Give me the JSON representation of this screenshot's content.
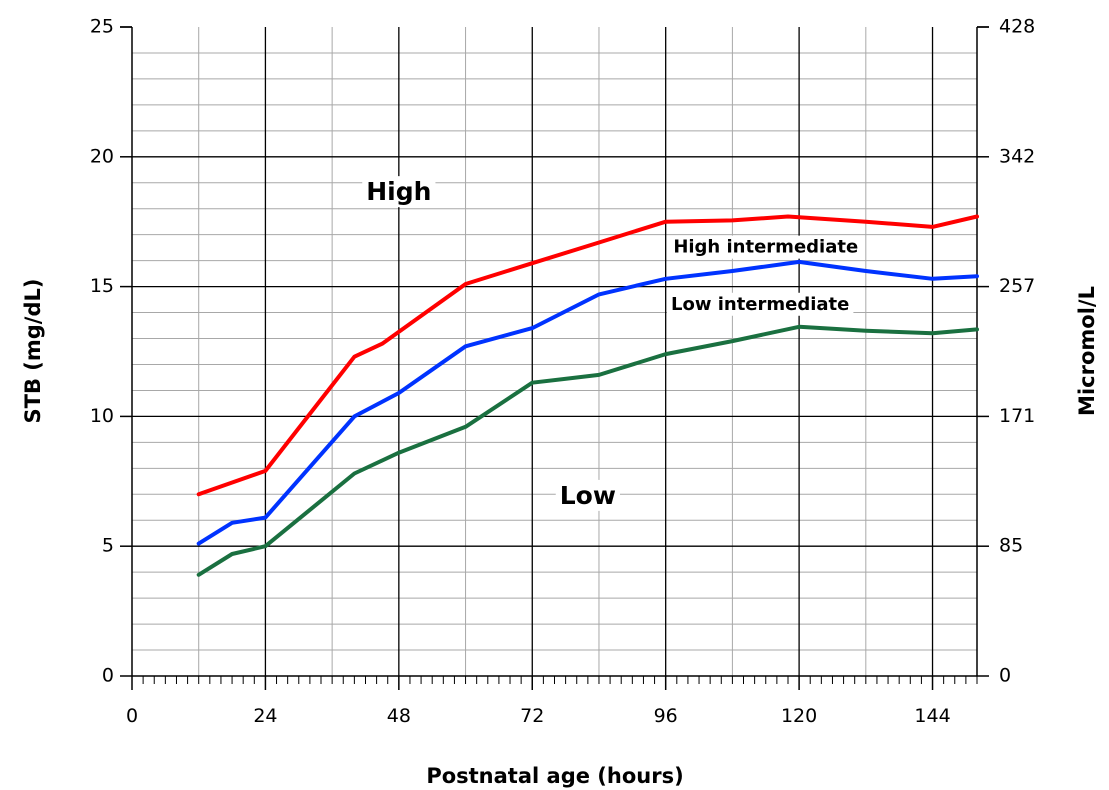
{
  "chart_data": {
    "type": "line",
    "xlabel": "Postnatal age (hours)",
    "ylabel": "STB (mg/dL)",
    "y2label": "Micromol/L",
    "xlim": [
      0,
      152
    ],
    "ylim": [
      0,
      25
    ],
    "x_ticks": [
      0,
      24,
      48,
      72,
      96,
      120,
      144
    ],
    "y_ticks": [
      0,
      5,
      10,
      15,
      20,
      25
    ],
    "y2_ticks": [
      {
        "value": 0,
        "label": "0"
      },
      {
        "value": 5,
        "label": "85"
      },
      {
        "value": 10,
        "label": "171"
      },
      {
        "value": 15,
        "label": "257"
      },
      {
        "value": 20,
        "label": "342"
      },
      {
        "value": 25,
        "label": "428"
      }
    ],
    "grid": true,
    "series": [
      {
        "color": "#ff0000",
        "points": [
          [
            12,
            7.0
          ],
          [
            24,
            7.9
          ],
          [
            40,
            12.3
          ],
          [
            45,
            12.8
          ],
          [
            60,
            15.1
          ],
          [
            72,
            15.9
          ],
          [
            84,
            16.7
          ],
          [
            96,
            17.5
          ],
          [
            108,
            17.55
          ],
          [
            118,
            17.7
          ],
          [
            132,
            17.5
          ],
          [
            144,
            17.3
          ],
          [
            152,
            17.7
          ]
        ]
      },
      {
        "color": "#0033ff",
        "points": [
          [
            12,
            5.1
          ],
          [
            18,
            5.9
          ],
          [
            24,
            6.1
          ],
          [
            40,
            10.0
          ],
          [
            48,
            10.9
          ],
          [
            60,
            12.7
          ],
          [
            72,
            13.4
          ],
          [
            84,
            14.7
          ],
          [
            96,
            15.3
          ],
          [
            108,
            15.6
          ],
          [
            120,
            15.95
          ],
          [
            132,
            15.6
          ],
          [
            144,
            15.3
          ],
          [
            152,
            15.4
          ]
        ]
      },
      {
        "color": "#1a7040",
        "points": [
          [
            12,
            3.9
          ],
          [
            18,
            4.7
          ],
          [
            24,
            5.0
          ],
          [
            40,
            7.8
          ],
          [
            48,
            8.6
          ],
          [
            60,
            9.6
          ],
          [
            72,
            11.3
          ],
          [
            84,
            11.6
          ],
          [
            96,
            12.4
          ],
          [
            108,
            12.9
          ],
          [
            120,
            13.45
          ],
          [
            132,
            13.3
          ],
          [
            144,
            13.2
          ],
          [
            152,
            13.35
          ]
        ]
      }
    ],
    "annotations": [
      {
        "text": "High",
        "x": 48,
        "y": 18.6,
        "size": "large"
      },
      {
        "text": "High intermediate",
        "x": 114,
        "y": 16.5,
        "size": "small"
      },
      {
        "text": "Low intermediate",
        "x": 113,
        "y": 14.3,
        "size": "small"
      },
      {
        "text": "Low",
        "x": 82,
        "y": 6.9,
        "size": "large"
      }
    ]
  }
}
